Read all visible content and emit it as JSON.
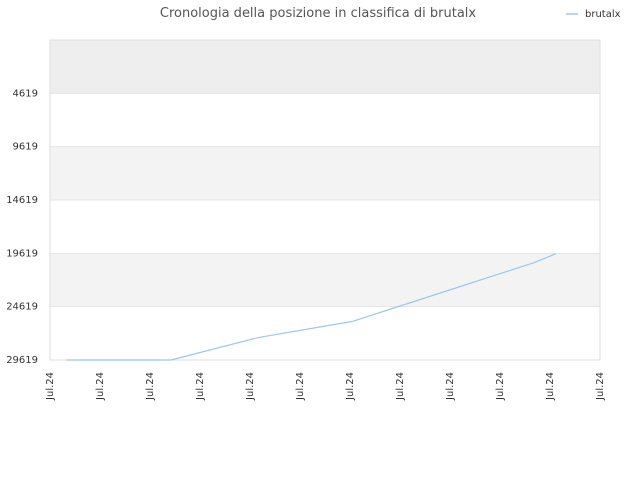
{
  "chart_data": {
    "type": "line",
    "title": "Cronologia della posizione in classifica di brutalx",
    "xlabel": "",
    "ylabel": "",
    "y_inverted": true,
    "ylim": [
      29619,
      -380
    ],
    "y_ticks": [
      4619,
      9619,
      14619,
      19619,
      24619,
      29619
    ],
    "x_tick_labels": [
      "Jul.24",
      "Jul.24",
      "Jul.24",
      "Jul.24",
      "Jul.24",
      "Jul.24",
      "Jul.24",
      "Jul.24",
      "Jul.24",
      "Jul.24",
      "Jul.24",
      "Jul.24"
    ],
    "grid": true,
    "legend_position": "top-right",
    "series": [
      {
        "name": "brutalx",
        "color": "#99c7f0",
        "x": [
          0.03,
          0.22,
          0.38,
          0.55,
          0.88,
          0.92
        ],
        "y": [
          29619,
          29619,
          27500,
          26000,
          20500,
          19650
        ]
      }
    ]
  }
}
